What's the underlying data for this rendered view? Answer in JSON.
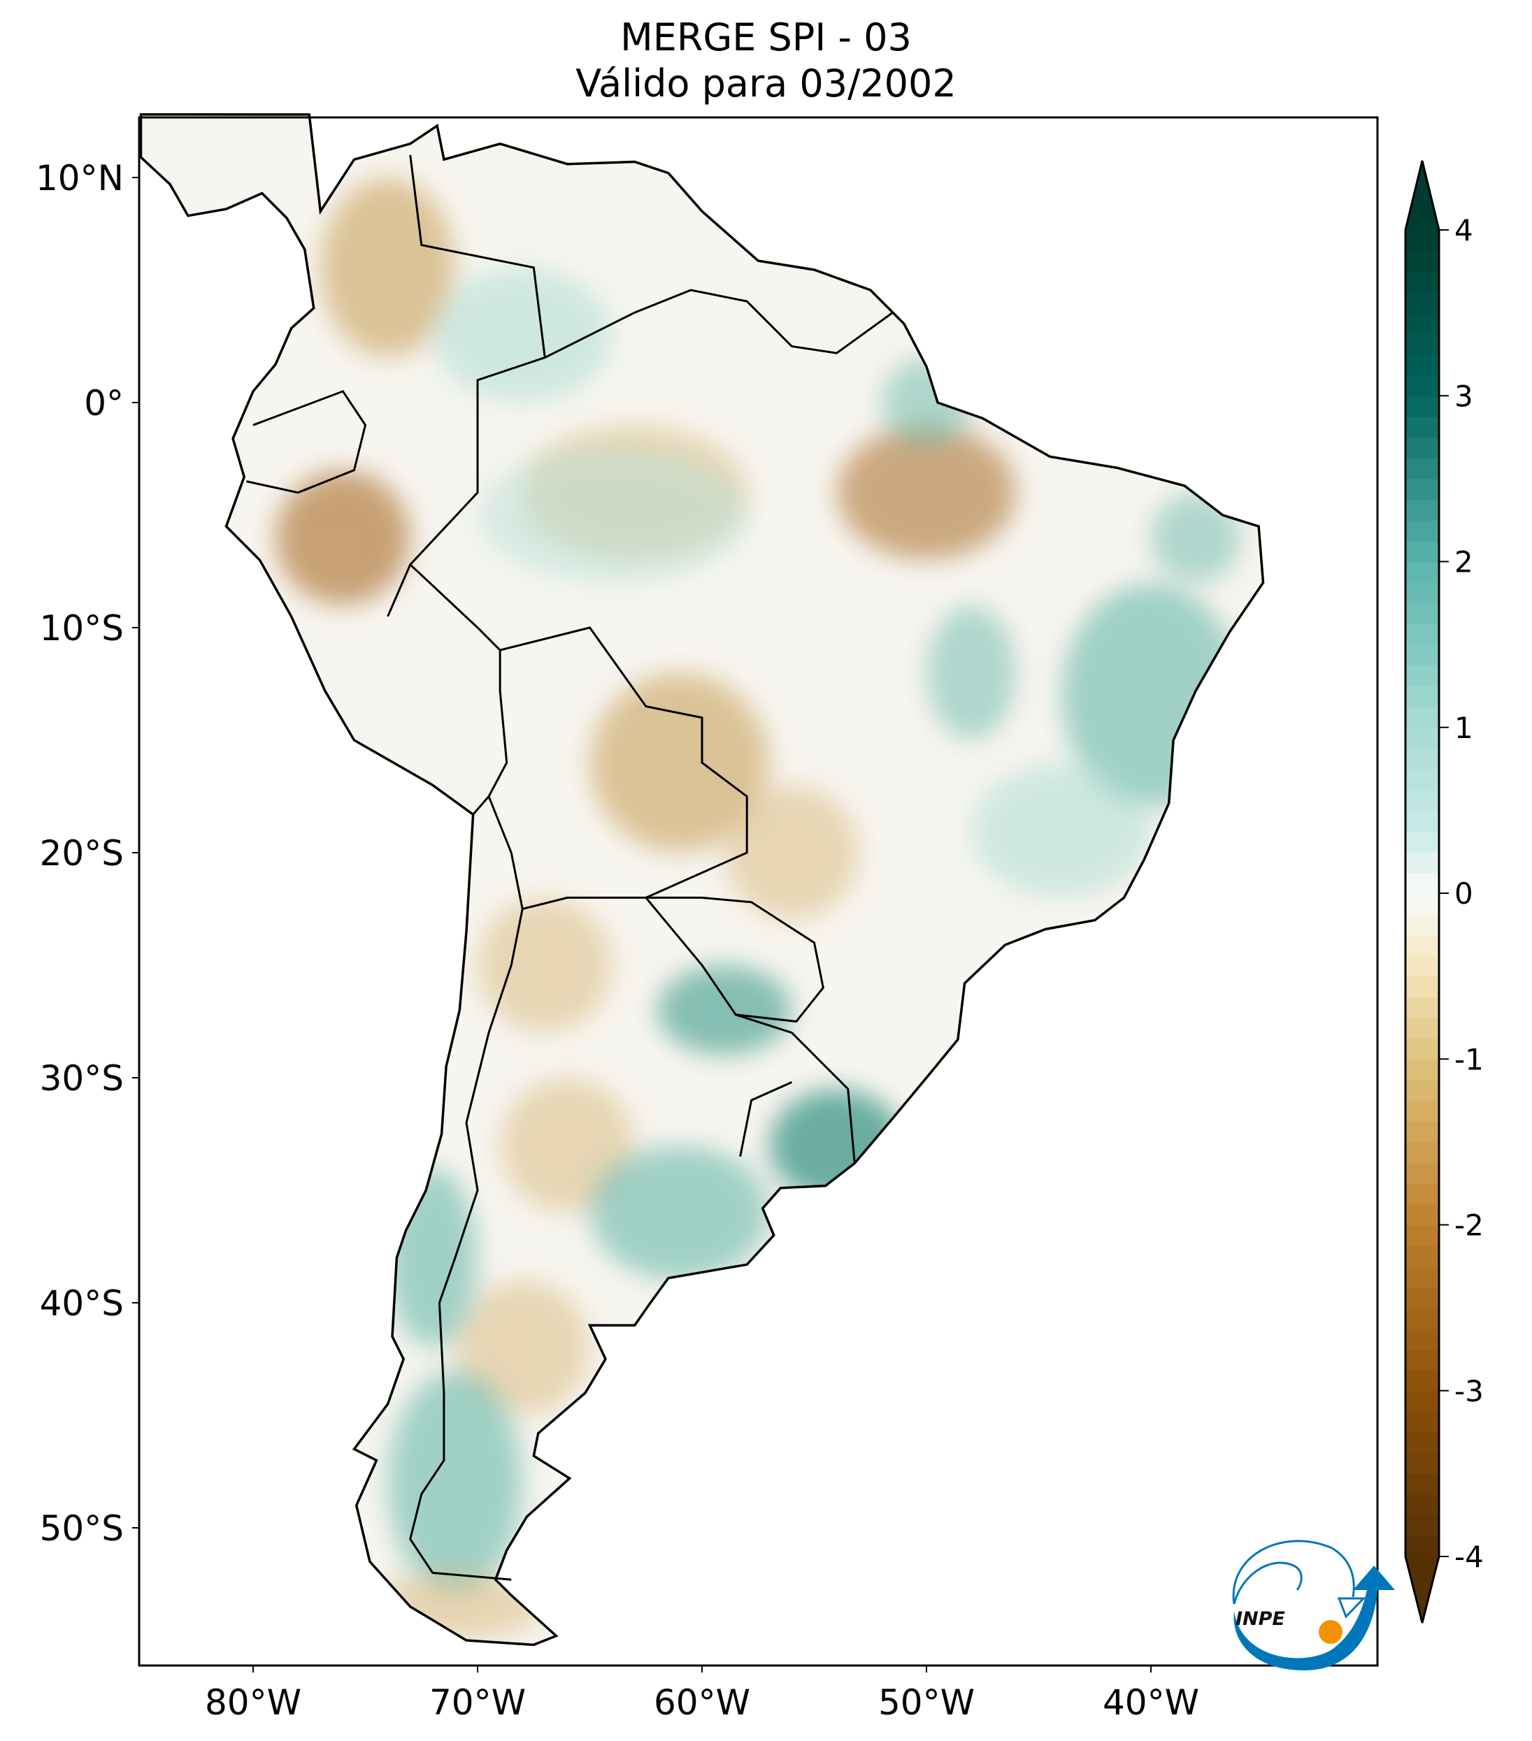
{
  "chart_data": {
    "type": "heatmap",
    "title": "MERGE   SPI - 03",
    "subtitle": "Válido para 03/2002",
    "xlabel": "",
    "ylabel": "",
    "xlim": [
      -85,
      -30
    ],
    "ylim": [
      -56,
      12.7
    ],
    "x_ticks": [
      {
        "value": -80,
        "label": "80°W"
      },
      {
        "value": -70,
        "label": "70°W"
      },
      {
        "value": -60,
        "label": "60°W"
      },
      {
        "value": -50,
        "label": "50°W"
      },
      {
        "value": -40,
        "label": "40°W"
      }
    ],
    "y_ticks": [
      {
        "value": 10,
        "label": "10°N"
      },
      {
        "value": 0,
        "label": "0°"
      },
      {
        "value": -10,
        "label": "10°S"
      },
      {
        "value": -20,
        "label": "20°S"
      },
      {
        "value": -30,
        "label": "30°S"
      },
      {
        "value": -40,
        "label": "40°S"
      },
      {
        "value": -50,
        "label": "50°S"
      }
    ],
    "colorbar": {
      "range": [
        -4,
        4
      ],
      "extend": "both",
      "colormap": "BrBG",
      "ticks": [
        {
          "value": 4,
          "label": "4"
        },
        {
          "value": 3,
          "label": "3"
        },
        {
          "value": 2,
          "label": "2"
        },
        {
          "value": 1,
          "label": "1"
        },
        {
          "value": 0,
          "label": "0"
        },
        {
          "value": -1,
          "label": "-1"
        },
        {
          "value": -2,
          "label": "-2"
        },
        {
          "value": -3,
          "label": "-3"
        },
        {
          "value": -4,
          "label": "-4"
        }
      ]
    },
    "logo": {
      "text": "INPE",
      "colors": {
        "blue": "#0077bb",
        "orange": "#f39200"
      }
    }
  }
}
